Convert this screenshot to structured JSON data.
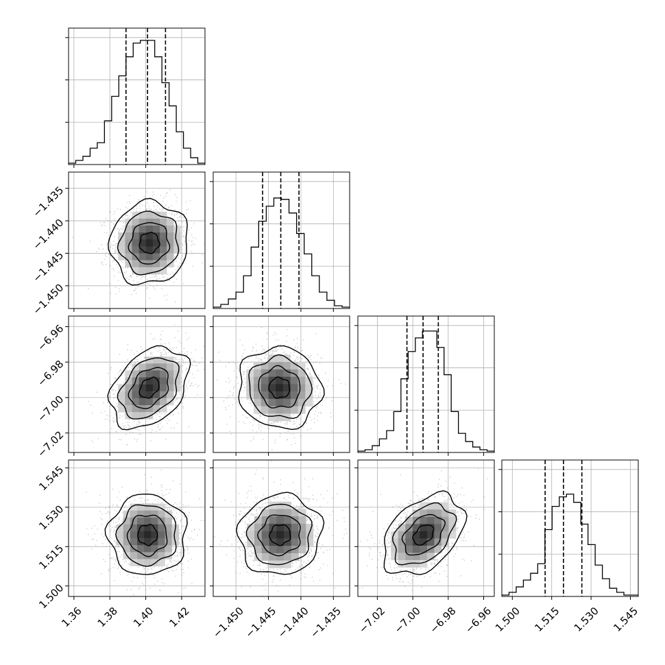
{
  "chart_data": {
    "type": "corner",
    "title": "",
    "grid": true,
    "parameters": [
      {
        "name": "",
        "range": [
          1.357,
          1.433
        ],
        "ticks": [
          "1.36",
          "1.38",
          "1.40",
          "1.42"
        ],
        "quantiles": [
          1.389,
          1.401,
          1.411
        ],
        "histogram": {
          "counts": [
            1,
            3,
            6,
            12,
            16,
            32,
            50,
            65,
            79,
            89,
            91,
            91,
            79,
            60,
            43,
            24,
            12,
            5,
            1
          ],
          "ylim": [
            0,
            100
          ]
        }
      },
      {
        "name": "",
        "range": [
          -1.4535,
          -1.4325
        ],
        "ticks": [
          "−1.435",
          "−1.440",
          "−1.445",
          "−1.450"
        ],
        "xticks": [
          "−1.450",
          "−1.445",
          "−1.440",
          "−1.435"
        ],
        "quantiles": [
          -1.4459,
          -1.4431,
          -1.4403
        ],
        "histogram": {
          "counts": [
            1,
            3,
            7,
            12,
            24,
            45,
            64,
            75,
            81,
            80,
            70,
            55,
            40,
            24,
            12,
            6,
            2,
            1
          ],
          "ylim": [
            0,
            100
          ]
        }
      },
      {
        "name": "",
        "range": [
          -7.031,
          -6.954
        ],
        "ticks": [
          "−6.96",
          "−6.98",
          "−7.00",
          "−7.02"
        ],
        "xticks": [
          "−7.02",
          "−7.00",
          "−6.98",
          "−6.96"
        ],
        "quantiles": [
          -7.0033,
          -6.9942,
          -6.9856
        ],
        "histogram": {
          "counts": [
            1,
            2,
            5,
            10,
            16,
            30,
            54,
            74,
            84,
            89,
            89,
            77,
            57,
            30,
            14,
            8,
            4,
            2,
            1
          ],
          "ylim": [
            0,
            100
          ]
        }
      },
      {
        "name": "",
        "range": [
          1.496,
          1.548
        ],
        "ticks": [
          "1.545",
          "1.530",
          "1.515",
          "1.500"
        ],
        "xticks": [
          "1.500",
          "1.515",
          "1.530",
          "1.545"
        ],
        "quantiles": [
          1.5125,
          1.5195,
          1.5265
        ],
        "histogram": {
          "counts": [
            1,
            3,
            7,
            12,
            17,
            24,
            49,
            66,
            73,
            75,
            69,
            53,
            38,
            23,
            13,
            6,
            3,
            1,
            1
          ],
          "ylim": [
            0,
            100
          ]
        }
      }
    ],
    "pairs": [
      {
        "x": 0,
        "y": 1,
        "mean": [
          1.402,
          -1.4434
        ],
        "sd": [
          0.0092,
          0.0027
        ],
        "rho": 0.05
      },
      {
        "x": 0,
        "y": 2,
        "mean": [
          1.402,
          -6.9945
        ],
        "sd": [
          0.0092,
          0.0097
        ],
        "rho": 0.35
      },
      {
        "x": 1,
        "y": 2,
        "mean": [
          -1.4433,
          -6.9945
        ],
        "sd": [
          0.0027,
          0.0097
        ],
        "rho": -0.05
      },
      {
        "x": 0,
        "y": 3,
        "mean": [
          1.401,
          1.5195
        ],
        "sd": [
          0.0092,
          0.0065
        ],
        "rho": 0.0
      },
      {
        "x": 1,
        "y": 3,
        "mean": [
          -1.4432,
          1.5195
        ],
        "sd": [
          0.0027,
          0.0065
        ],
        "rho": 0.05
      },
      {
        "x": 2,
        "y": 3,
        "mean": [
          -6.994,
          1.5195
        ],
        "sd": [
          0.0097,
          0.0065
        ],
        "rho": 0.4
      }
    ],
    "contour_levels_sigma": [
      0.5,
      1.0,
      1.5,
      2.0
    ]
  }
}
